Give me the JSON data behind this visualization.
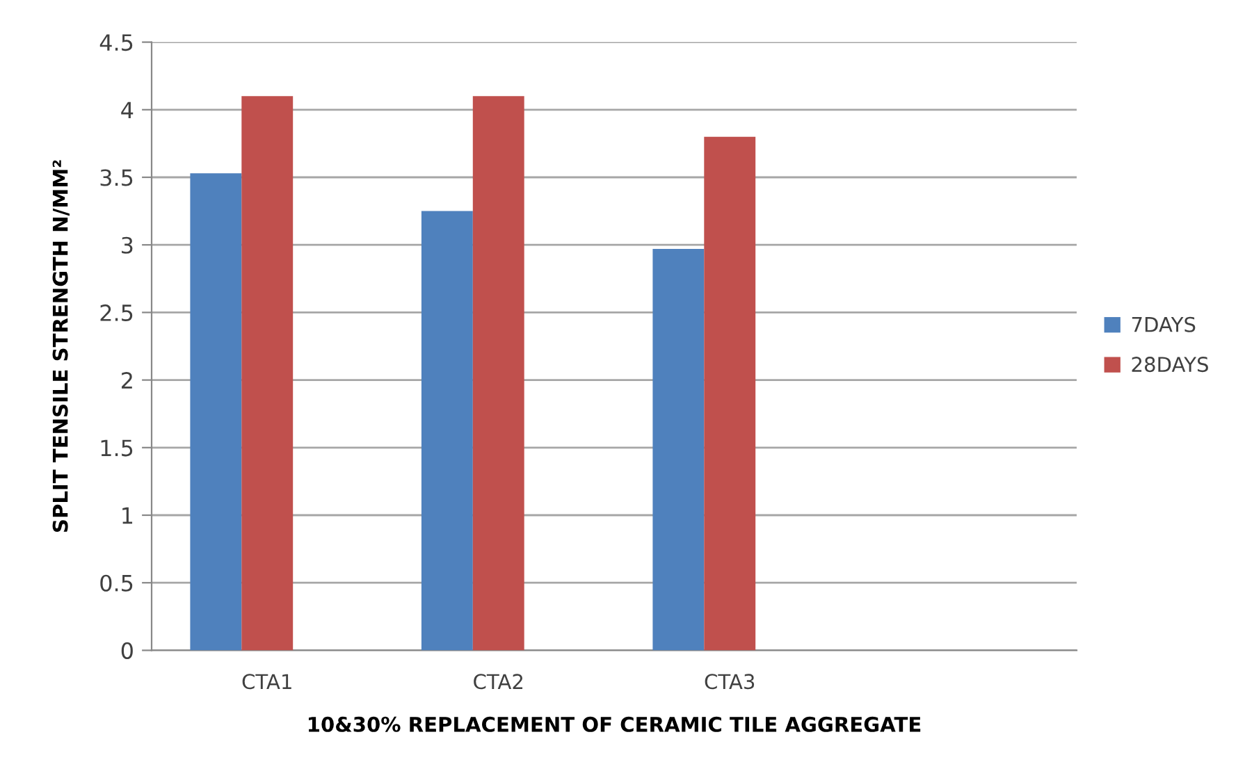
{
  "chart_data": {
    "type": "bar",
    "xlabel": "10&30% REPLACEMENT OF CERAMIC TILE AGGREGATE",
    "ylabel": "SPLIT TENSILE STRENGTH N/MM²",
    "categories": [
      "CTA1",
      "CTA2",
      "CTA3",
      null
    ],
    "series": [
      {
        "name": "7DAYS",
        "color": "#4f81bd",
        "values": [
          3.53,
          3.25,
          2.97,
          null
        ]
      },
      {
        "name": "28DAYS",
        "color": "#c0504d",
        "values": [
          4.1,
          4.1,
          3.8,
          null
        ]
      },
      {
        "values": [
          null,
          null,
          null,
          null
        ]
      }
    ],
    "ylim": [
      0,
      4.5
    ],
    "yticks": [
      0,
      0.5,
      1,
      1.5,
      2,
      2.5,
      3,
      3.5,
      4,
      4.5
    ],
    "grid": "y",
    "legend": "right"
  }
}
